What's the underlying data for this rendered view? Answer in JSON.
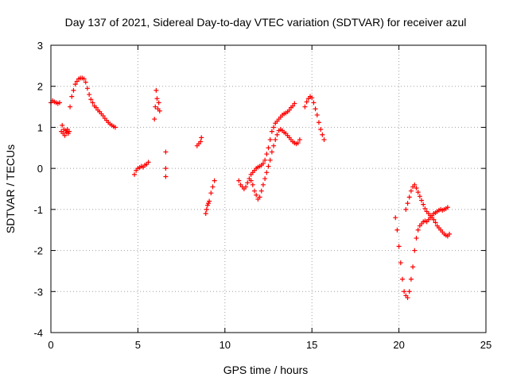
{
  "chart_data": {
    "type": "scatter",
    "title": "Day 137 of 2021, Sidereal Day-to-day VTEC variation (SDTVAR) for receiver azul",
    "xlabel": "GPS time / hours",
    "ylabel": "SDTVAR / TECUs",
    "xlim": [
      0,
      25
    ],
    "ylim": [
      -4,
      3
    ],
    "x_ticks": [
      "0",
      "5",
      "10",
      "15",
      "20",
      "25"
    ],
    "y_ticks": [
      "-4",
      "-3",
      "-2",
      "-1",
      "0",
      "1",
      "2",
      "3"
    ],
    "grid": true,
    "marker": "+",
    "color": "#ff0000",
    "series": [
      {
        "values": [
          [
            0.0,
            1.6
          ],
          [
            0.1,
            1.65
          ],
          [
            0.2,
            1.62
          ],
          [
            0.3,
            1.6
          ],
          [
            0.4,
            1.58
          ],
          [
            0.5,
            1.6
          ],
          [
            0.6,
            0.9
          ],
          [
            0.65,
            1.05
          ],
          [
            0.7,
            0.85
          ],
          [
            0.75,
            0.95
          ],
          [
            0.8,
            0.8
          ],
          [
            0.85,
            0.92
          ],
          [
            0.9,
            0.88
          ],
          [
            0.95,
            0.95
          ],
          [
            1.0,
            0.85
          ],
          [
            1.05,
            0.9
          ],
          [
            1.1,
            1.5
          ],
          [
            1.2,
            1.75
          ],
          [
            1.3,
            1.9
          ],
          [
            1.4,
            2.05
          ],
          [
            1.5,
            2.12
          ],
          [
            1.6,
            2.18
          ],
          [
            1.7,
            2.2
          ],
          [
            1.8,
            2.2
          ],
          [
            1.9,
            2.18
          ],
          [
            2.0,
            2.1
          ],
          [
            2.1,
            1.95
          ],
          [
            2.2,
            1.8
          ],
          [
            2.3,
            1.68
          ],
          [
            2.4,
            1.6
          ],
          [
            2.5,
            1.52
          ],
          [
            2.6,
            1.48
          ],
          [
            2.7,
            1.42
          ],
          [
            2.8,
            1.38
          ],
          [
            2.9,
            1.33
          ],
          [
            3.0,
            1.28
          ],
          [
            3.1,
            1.22
          ],
          [
            3.2,
            1.17
          ],
          [
            3.3,
            1.12
          ],
          [
            3.4,
            1.08
          ],
          [
            3.5,
            1.05
          ],
          [
            3.6,
            1.02
          ],
          [
            3.7,
            1.0
          ],
          [
            4.8,
            -0.15
          ],
          [
            4.9,
            -0.05
          ],
          [
            5.0,
            0.0
          ],
          [
            5.1,
            0.02
          ],
          [
            5.2,
            0.05
          ],
          [
            5.3,
            0.03
          ],
          [
            5.4,
            0.08
          ],
          [
            5.5,
            0.1
          ],
          [
            5.6,
            0.15
          ],
          [
            5.95,
            1.2
          ],
          [
            6.0,
            1.5
          ],
          [
            6.05,
            1.9
          ],
          [
            6.1,
            1.7
          ],
          [
            6.15,
            1.45
          ],
          [
            6.2,
            1.6
          ],
          [
            6.25,
            1.4
          ],
          [
            6.6,
            0.4
          ],
          [
            6.6,
            0.0
          ],
          [
            6.6,
            -0.2
          ],
          [
            8.4,
            0.55
          ],
          [
            8.5,
            0.6
          ],
          [
            8.6,
            0.65
          ],
          [
            8.65,
            0.75
          ],
          [
            8.9,
            -1.1
          ],
          [
            8.95,
            -1.0
          ],
          [
            9.0,
            -0.9
          ],
          [
            9.05,
            -0.85
          ],
          [
            9.1,
            -0.8
          ],
          [
            9.2,
            -0.6
          ],
          [
            9.3,
            -0.45
          ],
          [
            9.4,
            -0.3
          ],
          [
            10.8,
            -0.3
          ],
          [
            10.9,
            -0.4
          ],
          [
            11.0,
            -0.45
          ],
          [
            11.1,
            -0.5
          ],
          [
            11.2,
            -0.45
          ],
          [
            11.3,
            -0.35
          ],
          [
            11.4,
            -0.25
          ],
          [
            11.5,
            -0.3
          ],
          [
            11.6,
            -0.4
          ],
          [
            11.7,
            -0.55
          ],
          [
            11.8,
            -0.65
          ],
          [
            11.9,
            -0.75
          ],
          [
            12.0,
            -0.7
          ],
          [
            12.1,
            -0.55
          ],
          [
            12.2,
            -0.4
          ],
          [
            12.3,
            -0.25
          ],
          [
            12.4,
            -0.1
          ],
          [
            12.5,
            0.05
          ],
          [
            12.6,
            0.2
          ],
          [
            12.7,
            0.4
          ],
          [
            12.8,
            0.55
          ],
          [
            12.9,
            0.7
          ],
          [
            13.0,
            0.82
          ],
          [
            13.1,
            0.92
          ],
          [
            13.2,
            0.95
          ],
          [
            13.3,
            0.92
          ],
          [
            13.4,
            0.88
          ],
          [
            13.5,
            0.85
          ],
          [
            13.6,
            0.8
          ],
          [
            13.7,
            0.75
          ],
          [
            13.8,
            0.7
          ],
          [
            13.9,
            0.65
          ],
          [
            14.0,
            0.62
          ],
          [
            14.1,
            0.6
          ],
          [
            14.2,
            0.62
          ],
          [
            14.3,
            0.7
          ],
          [
            11.5,
            -0.15
          ],
          [
            11.6,
            -0.1
          ],
          [
            11.7,
            -0.05
          ],
          [
            11.8,
            0.0
          ],
          [
            11.9,
            0.03
          ],
          [
            12.0,
            0.05
          ],
          [
            12.1,
            0.08
          ],
          [
            12.2,
            0.12
          ],
          [
            12.3,
            0.2
          ],
          [
            12.4,
            0.35
          ],
          [
            12.5,
            0.5
          ],
          [
            12.6,
            0.7
          ],
          [
            12.7,
            0.9
          ],
          [
            12.8,
            1.0
          ],
          [
            12.9,
            1.1
          ],
          [
            13.0,
            1.15
          ],
          [
            13.1,
            1.2
          ],
          [
            13.2,
            1.25
          ],
          [
            13.3,
            1.3
          ],
          [
            13.4,
            1.33
          ],
          [
            13.5,
            1.35
          ],
          [
            13.6,
            1.38
          ],
          [
            13.7,
            1.42
          ],
          [
            13.8,
            1.48
          ],
          [
            13.9,
            1.52
          ],
          [
            14.0,
            1.58
          ],
          [
            14.6,
            1.5
          ],
          [
            14.7,
            1.62
          ],
          [
            14.8,
            1.7
          ],
          [
            14.9,
            1.75
          ],
          [
            15.0,
            1.72
          ],
          [
            15.1,
            1.6
          ],
          [
            15.2,
            1.45
          ],
          [
            15.3,
            1.3
          ],
          [
            15.4,
            1.12
          ],
          [
            15.5,
            0.95
          ],
          [
            15.6,
            0.82
          ],
          [
            15.7,
            0.7
          ],
          [
            19.8,
            -1.2
          ],
          [
            19.9,
            -1.5
          ],
          [
            20.0,
            -1.9
          ],
          [
            20.1,
            -2.3
          ],
          [
            20.2,
            -2.7
          ],
          [
            20.3,
            -3.0
          ],
          [
            20.4,
            -3.1
          ],
          [
            20.5,
            -3.15
          ],
          [
            20.6,
            -3.0
          ],
          [
            20.7,
            -2.7
          ],
          [
            20.8,
            -2.4
          ],
          [
            20.9,
            -2.0
          ],
          [
            21.0,
            -1.7
          ],
          [
            21.1,
            -1.5
          ],
          [
            21.2,
            -1.4
          ],
          [
            21.3,
            -1.35
          ],
          [
            21.4,
            -1.3
          ],
          [
            21.5,
            -1.28
          ],
          [
            21.6,
            -1.3
          ],
          [
            21.7,
            -1.25
          ],
          [
            21.8,
            -1.2
          ],
          [
            21.9,
            -1.15
          ],
          [
            22.0,
            -1.1
          ],
          [
            22.1,
            -1.08
          ],
          [
            22.2,
            -1.05
          ],
          [
            22.3,
            -1.02
          ],
          [
            22.4,
            -1.0
          ],
          [
            22.5,
            -1.02
          ],
          [
            22.6,
            -1.0
          ],
          [
            22.7,
            -0.98
          ],
          [
            22.8,
            -0.95
          ],
          [
            20.4,
            -1.0
          ],
          [
            20.5,
            -0.85
          ],
          [
            20.6,
            -0.7
          ],
          [
            20.7,
            -0.55
          ],
          [
            20.8,
            -0.45
          ],
          [
            20.9,
            -0.4
          ],
          [
            21.0,
            -0.48
          ],
          [
            21.1,
            -0.58
          ],
          [
            21.2,
            -0.68
          ],
          [
            21.3,
            -0.78
          ],
          [
            21.4,
            -0.88
          ],
          [
            21.5,
            -0.98
          ],
          [
            21.6,
            -1.05
          ],
          [
            21.7,
            -1.1
          ],
          [
            21.8,
            -1.15
          ],
          [
            21.9,
            -1.2
          ],
          [
            22.0,
            -1.25
          ],
          [
            22.1,
            -1.32
          ],
          [
            22.2,
            -1.4
          ],
          [
            22.3,
            -1.45
          ],
          [
            22.4,
            -1.5
          ],
          [
            22.5,
            -1.55
          ],
          [
            22.6,
            -1.6
          ],
          [
            22.7,
            -1.63
          ],
          [
            22.8,
            -1.65
          ],
          [
            22.9,
            -1.6
          ]
        ]
      }
    ]
  }
}
